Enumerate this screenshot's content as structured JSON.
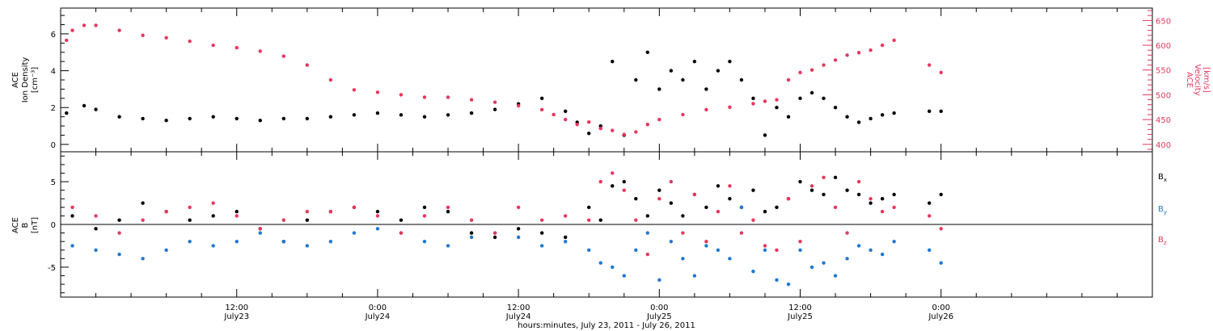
{
  "figure": {
    "xlabel": "hours:minutes, July 23, 2011 - July 26, 2011"
  },
  "colors": {
    "black": "#000000",
    "pink": "#e8365d",
    "blue": "#1f78d1"
  },
  "chart_data": [
    {
      "type": "scatter",
      "xlim_hours": [
        -3,
        90
      ],
      "x_ticks": [
        {
          "hour": 12,
          "time": "12:00",
          "day": "July23"
        },
        {
          "hour": 24,
          "time": "0:00",
          "day": "July24"
        },
        {
          "hour": 36,
          "time": "12:00",
          "day": "July24"
        },
        {
          "hour": 48,
          "time": "0:00",
          "day": "July25"
        },
        {
          "hour": 60,
          "time": "12:00",
          "day": "July25"
        },
        {
          "hour": 72,
          "time": "0:00",
          "day": "July26"
        }
      ],
      "ylabel_left": [
        "ACE",
        "Ion Density",
        "[cm⁻³]"
      ],
      "ylim_left": [
        -0.4,
        7.4
      ],
      "yticks_left": [
        "0",
        "2",
        "4",
        "6"
      ],
      "ylabel_right": [
        "ACE",
        "Velocity",
        "[km/s]"
      ],
      "ylim_right": [
        385,
        675
      ],
      "yticks_right": [
        "400",
        "450",
        "500",
        "550",
        "600",
        "650"
      ],
      "series": [
        {
          "axis": "left",
          "color": "black",
          "x": [
            -2.5,
            -1,
            0,
            2,
            4,
            6,
            8,
            10,
            12,
            14,
            16,
            18,
            20,
            22,
            24,
            26,
            28,
            30,
            32,
            34,
            36,
            38,
            40,
            41,
            42,
            43,
            44,
            45,
            46,
            47,
            48,
            49,
            50,
            51,
            52,
            53,
            54,
            55,
            56,
            57,
            58,
            59,
            60,
            61,
            62,
            63,
            64,
            65,
            66,
            67,
            68,
            71,
            72
          ],
          "y": [
            1.7,
            2.1,
            1.9,
            1.5,
            1.4,
            1.3,
            1.4,
            1.5,
            1.4,
            1.3,
            1.4,
            1.4,
            1.5,
            1.6,
            1.7,
            1.6,
            1.5,
            1.6,
            1.7,
            1.9,
            2.2,
            2.5,
            1.8,
            1.2,
            0.6,
            1.0,
            4.5,
            0.5,
            3.5,
            5.0,
            3.0,
            4.0,
            3.5,
            4.5,
            3.0,
            4.0,
            4.5,
            3.5,
            2.5,
            0.5,
            2.0,
            1.5,
            2.5,
            2.8,
            2.5,
            2.0,
            1.5,
            1.2,
            1.4,
            1.6,
            1.7,
            1.8,
            1.8
          ]
        },
        {
          "axis": "right",
          "color": "pink",
          "x": [
            -2.5,
            -2,
            -1,
            0,
            2,
            4,
            6,
            8,
            10,
            12,
            14,
            16,
            18,
            20,
            22,
            24,
            26,
            28,
            30,
            32,
            34,
            36,
            38,
            39,
            40,
            41,
            42,
            43,
            44,
            45,
            46,
            47,
            48,
            50,
            52,
            54,
            56,
            57,
            58,
            59,
            60,
            61,
            62,
            63,
            64,
            65,
            66,
            67,
            68,
            71,
            72
          ],
          "y": [
            610,
            630,
            640,
            640,
            630,
            620,
            615,
            608,
            600,
            595,
            588,
            578,
            560,
            530,
            510,
            505,
            500,
            495,
            495,
            490,
            485,
            478,
            470,
            460,
            450,
            440,
            445,
            432,
            428,
            420,
            425,
            440,
            450,
            460,
            470,
            475,
            482,
            487,
            490,
            530,
            545,
            550,
            560,
            570,
            580,
            585,
            590,
            600,
            610,
            560,
            545
          ]
        }
      ]
    },
    {
      "type": "scatter",
      "xlim_hours": [
        -3,
        90
      ],
      "ylabel_left": [
        "ACE",
        "B",
        "[nT]"
      ],
      "ylim": [
        -8.5,
        8.5
      ],
      "yticks": [
        "-5",
        "0",
        "5"
      ],
      "legend": [
        "Bx",
        "By",
        "Bz"
      ],
      "series": [
        {
          "name": "Bx",
          "color": "black",
          "x": [
            -2,
            0,
            2,
            4,
            6,
            8,
            10,
            12,
            14,
            16,
            18,
            20,
            22,
            24,
            26,
            28,
            30,
            32,
            34,
            36,
            38,
            40,
            42,
            43,
            44,
            45,
            46,
            47,
            48,
            49,
            50,
            51,
            52,
            53,
            54,
            55,
            56,
            57,
            58,
            59,
            60,
            61,
            62,
            63,
            64,
            65,
            66,
            67,
            68,
            71,
            72
          ],
          "y": [
            1.0,
            -0.5,
            0.5,
            2.5,
            1.5,
            0.5,
            1.0,
            1.5,
            -0.5,
            -2.0,
            0.5,
            1.5,
            2.0,
            1.5,
            0.5,
            2.0,
            1.5,
            -1.0,
            -1.5,
            -0.5,
            -1.0,
            -1.5,
            2.0,
            0.5,
            4.5,
            5.0,
            3.0,
            1.0,
            4.0,
            2.5,
            1.0,
            3.5,
            2.0,
            4.5,
            3.0,
            2.0,
            4.0,
            1.5,
            2.0,
            3.0,
            5.0,
            4.0,
            3.5,
            5.5,
            4.0,
            3.5,
            2.5,
            3.0,
            3.5,
            2.5,
            3.5
          ]
        },
        {
          "name": "By",
          "color": "blue",
          "x": [
            -2,
            0,
            2,
            4,
            6,
            8,
            10,
            12,
            14,
            16,
            18,
            20,
            22,
            24,
            26,
            28,
            30,
            32,
            34,
            36,
            38,
            40,
            42,
            43,
            44,
            45,
            46,
            47,
            48,
            49,
            50,
            51,
            52,
            53,
            54,
            55,
            56,
            57,
            58,
            59,
            60,
            61,
            62,
            63,
            64,
            65,
            66,
            67,
            68,
            71,
            72
          ],
          "y": [
            -2.5,
            -3.0,
            -3.5,
            -4.0,
            -3.0,
            -2.0,
            -2.5,
            -2.0,
            -1.0,
            -2.0,
            -2.5,
            -2.0,
            -1.0,
            -0.5,
            -1.0,
            -2.0,
            -2.5,
            -1.5,
            -1.0,
            -1.5,
            -2.5,
            -2.0,
            -3.0,
            -4.5,
            -5.0,
            -6.0,
            -3.0,
            -1.0,
            -6.5,
            -2.0,
            -4.0,
            -6.0,
            -2.5,
            -3.0,
            -4.0,
            2.0,
            -5.5,
            -3.0,
            -6.5,
            -7.0,
            -3.0,
            -5.0,
            -4.5,
            -6.0,
            -4.0,
            -2.5,
            -3.0,
            -3.5,
            -2.0,
            -3.0,
            -4.5
          ]
        },
        {
          "name": "Bz",
          "color": "pink",
          "x": [
            -2,
            0,
            2,
            4,
            6,
            8,
            10,
            12,
            14,
            16,
            18,
            20,
            22,
            24,
            26,
            28,
            30,
            32,
            34,
            36,
            38,
            40,
            42,
            43,
            44,
            45,
            46,
            47,
            48,
            49,
            50,
            51,
            52,
            53,
            54,
            55,
            56,
            57,
            58,
            59,
            60,
            61,
            62,
            63,
            64,
            65,
            66,
            67,
            68,
            71,
            72
          ],
          "y": [
            2.0,
            1.0,
            -1.0,
            0.5,
            1.5,
            2.0,
            2.5,
            1.0,
            -0.5,
            0.5,
            1.5,
            1.5,
            2.0,
            1.0,
            -1.0,
            1.0,
            2.0,
            0.5,
            -1.0,
            2.0,
            0.5,
            1.0,
            0.5,
            5.0,
            6.0,
            4.0,
            0.5,
            -3.5,
            3.0,
            5.0,
            -1.0,
            3.5,
            -2.0,
            1.5,
            4.5,
            -1.0,
            0.5,
            -2.5,
            -3.0,
            3.0,
            -2.0,
            4.5,
            5.5,
            2.0,
            -1.0,
            5.0,
            3.0,
            1.5,
            2.0,
            1.0,
            -0.5
          ]
        }
      ]
    }
  ]
}
